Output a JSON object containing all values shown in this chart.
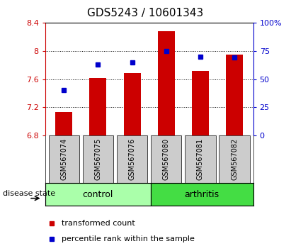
{
  "title": "GDS5243 / 10601343",
  "samples": [
    "GSM567074",
    "GSM567075",
    "GSM567076",
    "GSM567080",
    "GSM567081",
    "GSM567082"
  ],
  "groups": [
    "control",
    "control",
    "control",
    "arthritis",
    "arthritis",
    "arthritis"
  ],
  "bar_values": [
    7.13,
    7.62,
    7.69,
    8.28,
    7.72,
    7.95
  ],
  "dot_values": [
    40,
    63,
    65,
    75,
    70,
    69
  ],
  "bar_bottom": 6.8,
  "ylim_left": [
    6.8,
    8.4
  ],
  "ylim_right": [
    0,
    100
  ],
  "yticks_left": [
    6.8,
    7.2,
    7.6,
    8.0,
    8.4
  ],
  "yticks_right": [
    0,
    25,
    50,
    75,
    100
  ],
  "ytick_labels_left": [
    "6.8",
    "7.2",
    "7.6",
    "8",
    "8.4"
  ],
  "ytick_labels_right": [
    "0",
    "25",
    "50",
    "75",
    "100%"
  ],
  "bar_color": "#cc0000",
  "dot_color": "#0000cc",
  "control_color": "#aaffaa",
  "arthritis_color": "#44dd44",
  "label_bg_color": "#cccccc",
  "group_control_label": "control",
  "group_arthritis_label": "arthritis",
  "disease_state_label": "disease state",
  "legend_bar_label": "transformed count",
  "legend_dot_label": "percentile rank within the sample",
  "title_fontsize": 11,
  "tick_fontsize": 8,
  "label_fontsize": 7,
  "group_fontsize": 9,
  "legend_fontsize": 8
}
